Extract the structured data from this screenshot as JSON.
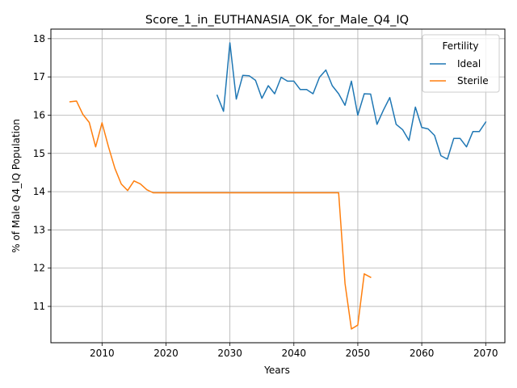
{
  "chart_data": {
    "type": "line",
    "title": "Score_1_in_EUTHANASIA_OK_for_Male_Q4_IQ",
    "xlabel": "Years",
    "ylabel": "% of Male Q4_IQ Population",
    "xlim": [
      2002,
      2073
    ],
    "ylim": [
      10.05,
      18.25
    ],
    "xticks": [
      2010,
      2020,
      2030,
      2040,
      2050,
      2060,
      2070
    ],
    "yticks": [
      11,
      12,
      13,
      14,
      15,
      16,
      17,
      18
    ],
    "grid": true,
    "legend": {
      "title": "Fertility",
      "placement": "top-right"
    },
    "series": [
      {
        "name": "Ideal",
        "color": "#1f77b4",
        "x": [
          2028,
          2029,
          2030,
          2031,
          2032,
          2033,
          2034,
          2035,
          2036,
          2037,
          2038,
          2039,
          2040,
          2041,
          2042,
          2043,
          2044,
          2045,
          2046,
          2047,
          2048,
          2049,
          2050,
          2051,
          2052,
          2053,
          2054,
          2055,
          2056,
          2057,
          2058,
          2059,
          2060,
          2061,
          2062,
          2063,
          2064,
          2065,
          2066,
          2067,
          2068,
          2069,
          2070
        ],
        "y": [
          16.52,
          16.1,
          17.89,
          16.42,
          17.04,
          17.03,
          16.91,
          16.44,
          16.77,
          16.56,
          16.99,
          16.89,
          16.89,
          16.67,
          16.67,
          16.56,
          16.99,
          17.18,
          16.77,
          16.56,
          16.26,
          16.89,
          16.0,
          16.56,
          16.55,
          15.76,
          16.13,
          16.46,
          15.76,
          15.62,
          15.34,
          16.21,
          15.68,
          15.64,
          15.47,
          14.94,
          14.85,
          15.39,
          15.39,
          15.17,
          15.57,
          15.57,
          15.82
        ]
      },
      {
        "name": "Sterile",
        "color": "#ff7f0e",
        "x": [
          2005,
          2006,
          2007,
          2008,
          2009,
          2010,
          2011,
          2012,
          2013,
          2014,
          2015,
          2016,
          2017,
          2018,
          2019,
          2020,
          2021,
          2022,
          2023,
          2024,
          2025,
          2026,
          2027,
          2028,
          2029,
          2030,
          2031,
          2032,
          2033,
          2034,
          2035,
          2036,
          2037,
          2038,
          2039,
          2040,
          2041,
          2042,
          2043,
          2044,
          2045,
          2046,
          2047,
          2048,
          2049,
          2050,
          2051,
          2052
        ],
        "y": [
          16.35,
          16.37,
          16.02,
          15.81,
          15.17,
          15.8,
          15.18,
          14.61,
          14.2,
          14.03,
          14.28,
          14.2,
          14.05,
          13.97,
          13.97,
          13.97,
          13.97,
          13.97,
          13.97,
          13.97,
          13.97,
          13.97,
          13.97,
          13.97,
          13.97,
          13.97,
          13.97,
          13.97,
          13.97,
          13.97,
          13.97,
          13.97,
          13.97,
          13.97,
          13.97,
          13.97,
          13.97,
          13.97,
          13.97,
          13.97,
          13.97,
          13.97,
          13.97,
          11.6,
          10.41,
          10.51,
          11.85,
          11.76
        ]
      }
    ]
  }
}
